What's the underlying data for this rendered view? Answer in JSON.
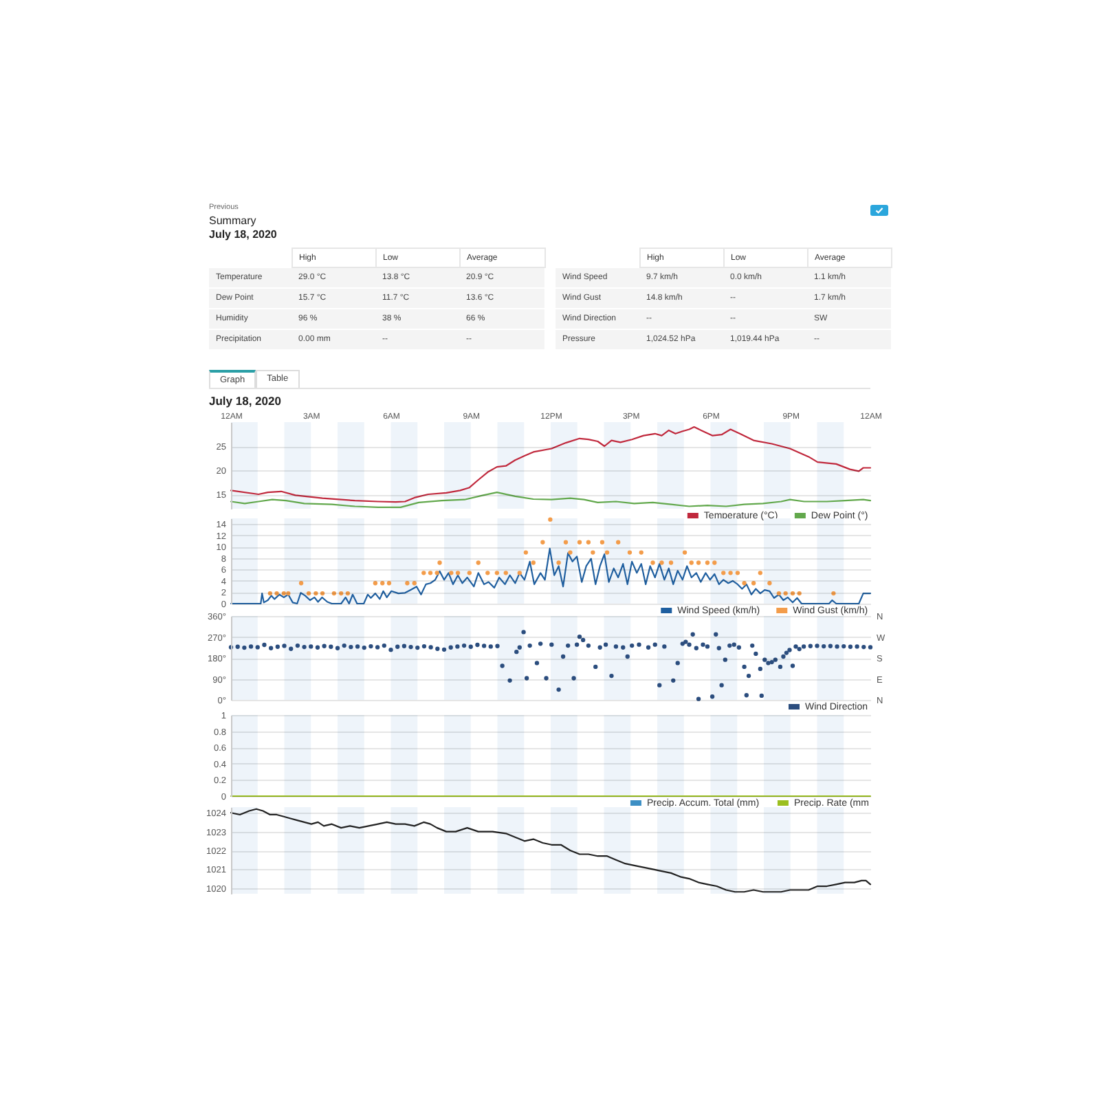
{
  "chart_data": [
    {
      "type": "other",
      "title": "Summary",
      "subtitle": "July 18, 2020",
      "annotations": [
        "Previous"
      ],
      "categories": [
        "High",
        "Low",
        "Average"
      ],
      "y_categories": [
        "Temperature",
        "Dew Point",
        "Humidity",
        "Precipitation"
      ],
      "cell_labels": [
        [
          "29.0 °C",
          "13.8 °C",
          "20.9 °C"
        ],
        [
          "15.7 °C",
          "11.7 °C",
          "13.6 °C"
        ],
        [
          "96 %",
          "38 %",
          "66 %"
        ],
        [
          "0.00 mm",
          "--",
          "--"
        ]
      ]
    },
    {
      "type": "other",
      "categories": [
        "High",
        "Low",
        "Average"
      ],
      "y_categories": [
        "Wind Speed",
        "Wind Gust",
        "Wind Direction",
        "Pressure"
      ],
      "cell_labels": [
        [
          "9.7 km/h",
          "0.0 km/h",
          "1.1 km/h"
        ],
        [
          "14.8 km/h",
          "--",
          "1.7 km/h"
        ],
        [
          "--",
          "--",
          "SW"
        ],
        [
          "1,024.52 hPa",
          "1,019.44 hPa",
          "--"
        ]
      ]
    },
    {
      "type": "line",
      "title": "July 18, 2020",
      "annotations": [
        "Graph",
        "Table"
      ],
      "xlim": [
        "2020-07-18T00:00",
        "2020-07-19T00:00"
      ],
      "xticks": [
        {
          "value": "2020-07-18T00:00",
          "label": "12AM"
        },
        {
          "value": "2020-07-18T03:00",
          "label": "3AM"
        },
        {
          "value": "2020-07-18T06:00",
          "label": "6AM"
        },
        {
          "value": "2020-07-18T09:00",
          "label": "9AM"
        },
        {
          "value": "2020-07-18T12:00",
          "label": "12PM"
        },
        {
          "value": "2020-07-18T15:00",
          "label": "3PM"
        },
        {
          "value": "2020-07-18T18:00",
          "label": "6PM"
        },
        {
          "value": "2020-07-18T21:00",
          "label": "9PM"
        },
        {
          "value": "2020-07-19T00:00",
          "label": "12AM"
        }
      ],
      "ylim": [
        12,
        30
      ],
      "yticks": [
        15,
        20,
        25
      ],
      "grid": "y",
      "legend": "bottom right",
      "bands": [
        {
          "axis": "x",
          "from": "2020-07-18T00:00",
          "to": "2020-07-18T01:00",
          "color": "#eef4fa"
        },
        {
          "axis": "x",
          "from": "2020-07-18T02:00",
          "to": "2020-07-18T03:00",
          "color": "#eef4fa"
        },
        {
          "axis": "x",
          "from": "2020-07-18T04:00",
          "to": "2020-07-18T05:00",
          "color": "#eef4fa"
        },
        {
          "axis": "x",
          "from": "2020-07-18T06:00",
          "to": "2020-07-18T07:00",
          "color": "#eef4fa"
        },
        {
          "axis": "x",
          "from": "2020-07-18T08:00",
          "to": "2020-07-18T09:00",
          "color": "#eef4fa"
        },
        {
          "axis": "x",
          "from": "2020-07-18T10:00",
          "to": "2020-07-18T11:00",
          "color": "#eef4fa"
        },
        {
          "axis": "x",
          "from": "2020-07-18T12:00",
          "to": "2020-07-18T13:00",
          "color": "#eef4fa"
        },
        {
          "axis": "x",
          "from": "2020-07-18T14:00",
          "to": "2020-07-18T15:00",
          "color": "#eef4fa"
        },
        {
          "axis": "x",
          "from": "2020-07-18T16:00",
          "to": "2020-07-18T17:00",
          "color": "#eef4fa"
        },
        {
          "axis": "x",
          "from": "2020-07-18T18:00",
          "to": "2020-07-18T19:00",
          "color": "#eef4fa"
        },
        {
          "axis": "x",
          "from": "2020-07-18T20:00",
          "to": "2020-07-18T21:00",
          "color": "#eef4fa"
        },
        {
          "axis": "x",
          "from": "2020-07-18T22:00",
          "to": "2020-07-18T23:00",
          "color": "#eef4fa"
        }
      ],
      "series": [
        {
          "name": "Temperature (°C)",
          "color": "#c0283c",
          "x": [
            "2020-07-18T00:00",
            "2020-07-18T01:02",
            "2020-07-18T01:23",
            "2020-07-18T01:53",
            "2020-07-18T02:25",
            "2020-07-18T03:26",
            "2020-07-18T04:08",
            "2020-07-18T04:39",
            "2020-07-18T05:31",
            "2020-07-18T06:11",
            "2020-07-18T06:32",
            "2020-07-18T06:53",
            "2020-07-18T07:24",
            "2020-07-18T08:05",
            "2020-07-18T08:36",
            "2020-07-18T08:57",
            "2020-07-18T09:17",
            "2020-07-18T09:38",
            "2020-07-18T09:59",
            "2020-07-18T10:19",
            "2020-07-18T10:40",
            "2020-07-18T11:01",
            "2020-07-18T11:21",
            "2020-07-18T12:02",
            "2020-07-18T12:34",
            "2020-07-18T13:05",
            "2020-07-18T13:25",
            "2020-07-18T13:46",
            "2020-07-18T14:01",
            "2020-07-18T14:17",
            "2020-07-18T14:37",
            "2020-07-18T15:03",
            "2020-07-18T15:29",
            "2020-07-18T15:55",
            "2020-07-18T16:10",
            "2020-07-18T16:26",
            "2020-07-18T16:41",
            "2020-07-18T16:57",
            "2020-07-18T17:12",
            "2020-07-18T17:23",
            "2020-07-18T17:43",
            "2020-07-18T18:04",
            "2020-07-18T18:25",
            "2020-07-18T18:45",
            "2020-07-18T19:06",
            "2020-07-18T19:37",
            "2020-07-18T20:18",
            "2020-07-18T20:59",
            "2020-07-18T21:41",
            "2020-07-18T22:01",
            "2020-07-18T22:43",
            "2020-07-18T23:14",
            "2020-07-18T23:34",
            "2020-07-18T23:44",
            "2020-07-19T00:00"
          ],
          "values": [
            15.8,
            15.0,
            15.4,
            15.6,
            14.8,
            14.2,
            13.9,
            13.7,
            13.5,
            13.4,
            13.5,
            14.3,
            15.0,
            15.3,
            15.8,
            16.4,
            18.0,
            19.6,
            20.7,
            20.9,
            22.1,
            23.0,
            23.8,
            24.5,
            25.7,
            26.6,
            26.4,
            26.0,
            25.0,
            26.2,
            25.8,
            26.4,
            27.2,
            27.6,
            27.2,
            28.3,
            27.6,
            28.1,
            28.5,
            29.0,
            28.1,
            27.2,
            27.4,
            28.5,
            27.6,
            26.2,
            25.5,
            24.5,
            22.8,
            21.7,
            21.3,
            20.2,
            19.8,
            20.5,
            20.5
          ]
        },
        {
          "name": "Dew Point (°)",
          "color": "#62a84c",
          "x": [
            "2020-07-18T00:00",
            "2020-07-18T00:31",
            "2020-07-18T01:02",
            "2020-07-18T01:33",
            "2020-07-18T02:04",
            "2020-07-18T02:45",
            "2020-07-18T03:47",
            "2020-07-18T04:39",
            "2020-07-18T05:31",
            "2020-07-18T06:22",
            "2020-07-18T07:03",
            "2020-07-18T07:55",
            "2020-07-18T08:46",
            "2020-07-18T09:28",
            "2020-07-18T09:59",
            "2020-07-18T10:40",
            "2020-07-18T11:21",
            "2020-07-18T12:02",
            "2020-07-18T12:44",
            "2020-07-18T13:15",
            "2020-07-18T13:46",
            "2020-07-18T14:27",
            "2020-07-18T15:08",
            "2020-07-18T15:50",
            "2020-07-18T16:31",
            "2020-07-18T17:12",
            "2020-07-18T17:53",
            "2020-07-18T18:35",
            "2020-07-18T19:16",
            "2020-07-18T19:58",
            "2020-07-18T20:39",
            "2020-07-18T20:59",
            "2020-07-18T21:31",
            "2020-07-18T22:22",
            "2020-07-18T23:03",
            "2020-07-18T23:44",
            "2020-07-19T00:00"
          ],
          "values": [
            13.5,
            13.1,
            13.5,
            13.9,
            13.7,
            13.1,
            12.9,
            12.5,
            12.3,
            12.3,
            13.3,
            13.7,
            13.9,
            14.8,
            15.4,
            14.6,
            14.0,
            13.9,
            14.2,
            13.9,
            13.3,
            13.5,
            13.1,
            13.3,
            12.9,
            12.5,
            12.7,
            12.5,
            12.9,
            13.1,
            13.5,
            13.9,
            13.5,
            13.5,
            13.7,
            13.9,
            13.7
          ]
        }
      ]
    },
    {
      "type": "line",
      "xlim": [
        "2020-07-18T00:00",
        "2020-07-19T00:00"
      ],
      "tick_labels": "y",
      "ylim": [
        0,
        15
      ],
      "yticks": [
        0,
        2,
        4,
        6,
        8,
        10,
        12,
        14
      ],
      "grid": "y",
      "legend": "bottom right",
      "bands": [
        {
          "axis": "x",
          "from": "2020-07-18T00:00",
          "to": "2020-07-18T01:00",
          "color": "#eef4fa"
        },
        {
          "axis": "x",
          "from": "2020-07-18T02:00",
          "to": "2020-07-18T03:00",
          "color": "#eef4fa"
        },
        {
          "axis": "x",
          "from": "2020-07-18T04:00",
          "to": "2020-07-18T05:00",
          "color": "#eef4fa"
        },
        {
          "axis": "x",
          "from": "2020-07-18T06:00",
          "to": "2020-07-18T07:00",
          "color": "#eef4fa"
        },
        {
          "axis": "x",
          "from": "2020-07-18T08:00",
          "to": "2020-07-18T09:00",
          "color": "#eef4fa"
        },
        {
          "axis": "x",
          "from": "2020-07-18T10:00",
          "to": "2020-07-18T11:00",
          "color": "#eef4fa"
        },
        {
          "axis": "x",
          "from": "2020-07-18T12:00",
          "to": "2020-07-18T13:00",
          "color": "#eef4fa"
        },
        {
          "axis": "x",
          "from": "2020-07-18T14:00",
          "to": "2020-07-18T15:00",
          "color": "#eef4fa"
        },
        {
          "axis": "x",
          "from": "2020-07-18T16:00",
          "to": "2020-07-18T17:00",
          "color": "#eef4fa"
        },
        {
          "axis": "x",
          "from": "2020-07-18T18:00",
          "to": "2020-07-18T19:00",
          "color": "#eef4fa"
        },
        {
          "axis": "x",
          "from": "2020-07-18T20:00",
          "to": "2020-07-18T21:00",
          "color": "#eef4fa"
        },
        {
          "axis": "x",
          "from": "2020-07-18T22:00",
          "to": "2020-07-18T23:00",
          "color": "#eef4fa"
        }
      ],
      "series": [
        {
          "name": "Wind Speed (km/h)",
          "color": "#1f5fa0",
          "x": [
            "2020-07-18T00:00",
            "2020-07-18T01:07",
            "2020-07-18T01:10",
            "2020-07-18T01:14",
            "2020-07-18T01:23",
            "2020-07-18T01:31",
            "2020-07-18T01:38",
            "2020-07-18T01:49",
            "2020-07-18T01:59",
            "2020-07-18T02:09",
            "2020-07-18T02:19",
            "2020-07-18T02:29",
            "2020-07-18T02:37",
            "2020-07-18T02:47",
            "2020-07-18T02:58",
            "2020-07-18T03:08",
            "2020-07-18T03:16",
            "2020-07-18T03:25",
            "2020-07-18T03:37",
            "2020-07-18T03:47",
            "2020-07-18T04:08",
            "2020-07-18T04:18",
            "2020-07-18T04:26",
            "2020-07-18T04:34",
            "2020-07-18T04:44",
            "2020-07-18T04:59",
            "2020-07-18T05:08",
            "2020-07-18T05:15",
            "2020-07-18T05:25",
            "2020-07-18T05:35",
            "2020-07-18T05:43",
            "2020-07-18T05:51",
            "2020-07-18T06:01",
            "2020-07-18T06:17",
            "2020-07-18T06:32",
            "2020-07-18T06:44",
            "2020-07-18T06:58",
            "2020-07-18T07:08",
            "2020-07-18T07:19",
            "2020-07-18T07:29",
            "2020-07-18T07:40",
            "2020-07-18T07:50",
            "2020-07-18T08:00",
            "2020-07-18T08:10",
            "2020-07-18T08:20",
            "2020-07-18T08:31",
            "2020-07-18T08:41",
            "2020-07-18T08:52",
            "2020-07-18T09:07",
            "2020-07-18T09:17",
            "2020-07-18T09:30",
            "2020-07-18T09:40",
            "2020-07-18T09:53",
            "2020-07-18T10:04",
            "2020-07-18T10:17",
            "2020-07-18T10:28",
            "2020-07-18T10:40",
            "2020-07-18T10:50",
            "2020-07-18T11:01",
            "2020-07-18T11:13",
            "2020-07-18T11:23",
            "2020-07-18T11:37",
            "2020-07-18T11:47",
            "2020-07-18T11:58",
            "2020-07-18T12:08",
            "2020-07-18T12:18",
            "2020-07-18T12:28",
            "2020-07-18T12:39",
            "2020-07-18T12:49",
            "2020-07-18T12:59",
            "2020-07-18T13:10",
            "2020-07-18T13:20",
            "2020-07-18T13:31",
            "2020-07-18T13:41",
            "2020-07-18T13:51",
            "2020-07-18T14:01",
            "2020-07-18T14:11",
            "2020-07-18T14:22",
            "2020-07-18T14:32",
            "2020-07-18T14:43",
            "2020-07-18T14:53",
            "2020-07-18T15:03",
            "2020-07-18T15:14",
            "2020-07-18T15:24",
            "2020-07-18T15:34",
            "2020-07-18T15:44",
            "2020-07-18T15:55",
            "2020-07-18T16:05",
            "2020-07-18T16:16",
            "2020-07-18T16:26",
            "2020-07-18T16:36",
            "2020-07-18T16:46",
            "2020-07-18T16:57",
            "2020-07-18T17:07",
            "2020-07-18T17:17",
            "2020-07-18T17:28",
            "2020-07-18T17:38",
            "2020-07-18T17:49",
            "2020-07-18T17:59",
            "2020-07-18T18:09",
            "2020-07-18T18:19",
            "2020-07-18T18:29",
            "2020-07-18T18:40",
            "2020-07-18T18:50",
            "2020-07-18T19:01",
            "2020-07-18T19:11",
            "2020-07-18T19:21",
            "2020-07-18T19:32",
            "2020-07-18T19:42",
            "2020-07-18T19:52",
            "2020-07-18T20:02",
            "2020-07-18T20:13",
            "2020-07-18T20:23",
            "2020-07-18T20:34",
            "2020-07-18T20:44",
            "2020-07-18T20:54",
            "2020-07-18T21:05",
            "2020-07-18T21:15",
            "2020-07-18T21:25",
            "2020-07-18T22:27",
            "2020-07-18T22:34",
            "2020-07-18T22:43",
            "2020-07-18T23:34",
            "2020-07-18T23:44",
            "2020-07-19T00:00"
          ],
          "values": [
            0,
            0,
            1.8,
            0.2,
            0.6,
            1.4,
            0.8,
            1.6,
            1.1,
            1.6,
            0.2,
            0,
            1.9,
            1.4,
            0.6,
            1.1,
            0.3,
            1.1,
            0.3,
            0,
            0,
            1.1,
            0,
            1.6,
            0,
            0,
            1.6,
            1.0,
            1.8,
            0.8,
            2.2,
            1.1,
            2.2,
            1.8,
            1.9,
            2.4,
            3.0,
            1.6,
            3.4,
            3.6,
            4.2,
            5.7,
            4.2,
            5.4,
            3.4,
            5.0,
            3.6,
            4.6,
            3.0,
            5.4,
            3.4,
            3.8,
            2.8,
            4.6,
            3.4,
            5.0,
            3.6,
            5.4,
            4.2,
            7.4,
            3.4,
            5.4,
            4.2,
            9.7,
            5.0,
            6.6,
            3.0,
            8.9,
            7.4,
            8.3,
            3.8,
            6.6,
            7.9,
            3.4,
            6.6,
            8.7,
            3.8,
            6.2,
            4.6,
            7.0,
            3.4,
            7.4,
            5.4,
            7.0,
            3.4,
            6.6,
            4.6,
            7.0,
            4.2,
            6.2,
            3.4,
            5.8,
            4.2,
            6.6,
            4.6,
            5.4,
            3.8,
            5.4,
            4.2,
            5.2,
            3.4,
            4.2,
            3.6,
            4.0,
            3.4,
            2.6,
            3.4,
            1.6,
            2.6,
            1.8,
            2.4,
            2.2,
            1.0,
            1.6,
            0.6,
            1.1,
            0.2,
            1.0,
            0,
            0,
            0.6,
            0,
            0,
            1.8,
            1.8
          ]
        },
        {
          "name": "Wind Gust (km/h)",
          "type": "scatter",
          "marker": "circle",
          "color": "#f39c4a",
          "x": [
            "2020-07-18T01:28",
            "2020-07-18T01:43",
            "2020-07-18T01:59",
            "2020-07-18T02:09",
            "2020-07-18T02:38",
            "2020-07-18T02:55",
            "2020-07-18T03:11",
            "2020-07-18T03:26",
            "2020-07-18T03:52",
            "2020-07-18T04:08",
            "2020-07-18T04:23",
            "2020-07-18T05:25",
            "2020-07-18T05:41",
            "2020-07-18T05:56",
            "2020-07-18T06:37",
            "2020-07-18T06:53",
            "2020-07-18T07:14",
            "2020-07-18T07:29",
            "2020-07-18T07:44",
            "2020-07-18T07:50",
            "2020-07-18T08:16",
            "2020-07-18T08:31",
            "2020-07-18T08:57",
            "2020-07-18T09:17",
            "2020-07-18T09:38",
            "2020-07-18T09:59",
            "2020-07-18T10:19",
            "2020-07-18T10:50",
            "2020-07-18T11:04",
            "2020-07-18T11:21",
            "2020-07-18T11:42",
            "2020-07-18T11:59",
            "2020-07-18T12:18",
            "2020-07-18T12:34",
            "2020-07-18T12:44",
            "2020-07-18T13:05",
            "2020-07-18T13:25",
            "2020-07-18T13:35",
            "2020-07-18T13:56",
            "2020-07-18T14:07",
            "2020-07-18T14:32",
            "2020-07-18T14:58",
            "2020-07-18T15:24",
            "2020-07-18T15:50",
            "2020-07-18T16:10",
            "2020-07-18T16:31",
            "2020-07-18T17:02",
            "2020-07-18T17:17",
            "2020-07-18T17:33",
            "2020-07-18T17:53",
            "2020-07-18T18:09",
            "2020-07-18T18:29",
            "2020-07-18T18:45",
            "2020-07-18T19:01",
            "2020-07-18T19:16",
            "2020-07-18T19:37",
            "2020-07-18T19:52",
            "2020-07-18T20:13",
            "2020-07-18T20:34",
            "2020-07-18T20:49",
            "2020-07-18T21:05",
            "2020-07-18T21:20",
            "2020-07-18T22:37"
          ],
          "values": [
            1.8,
            1.8,
            1.8,
            1.8,
            3.6,
            1.8,
            1.8,
            1.8,
            1.8,
            1.8,
            1.8,
            3.6,
            3.6,
            3.6,
            3.6,
            3.6,
            5.4,
            5.4,
            5.4,
            7.2,
            5.4,
            5.4,
            5.4,
            7.2,
            5.4,
            5.4,
            5.4,
            5.4,
            9.0,
            7.2,
            10.8,
            14.8,
            7.2,
            10.8,
            9.0,
            10.8,
            10.8,
            9.0,
            10.8,
            9.0,
            10.8,
            9.0,
            9.0,
            7.2,
            7.2,
            7.2,
            9.0,
            7.2,
            7.2,
            7.2,
            7.2,
            5.4,
            5.4,
            5.4,
            3.6,
            3.6,
            5.4,
            3.6,
            1.8,
            1.8,
            1.8,
            1.8,
            1.8
          ]
        }
      ]
    },
    {
      "type": "scatter",
      "marker": "circle",
      "xlim": [
        "2020-07-18T00:00",
        "2020-07-19T00:00"
      ],
      "tick_labels": "y",
      "ylim": [
        0,
        360
      ],
      "yticks": [
        {
          "value": 0,
          "label": "0°"
        },
        {
          "value": 90,
          "label": "90°"
        },
        {
          "value": 180,
          "label": "180°"
        },
        {
          "value": 270,
          "label": "270°"
        },
        {
          "value": 360,
          "label": "360°"
        }
      ],
      "y2_categories": [
        "N",
        "W",
        "S",
        "E",
        "N"
      ],
      "grid": "y",
      "legend": "bottom right",
      "bands": [
        {
          "axis": "x",
          "from": "2020-07-18T00:00",
          "to": "2020-07-18T01:00",
          "color": "#eef4fa"
        },
        {
          "axis": "x",
          "from": "2020-07-18T02:00",
          "to": "2020-07-18T03:00",
          "color": "#eef4fa"
        },
        {
          "axis": "x",
          "from": "2020-07-18T04:00",
          "to": "2020-07-18T05:00",
          "color": "#eef4fa"
        },
        {
          "axis": "x",
          "from": "2020-07-18T06:00",
          "to": "2020-07-18T07:00",
          "color": "#eef4fa"
        },
        {
          "axis": "x",
          "from": "2020-07-18T08:00",
          "to": "2020-07-18T09:00",
          "color": "#eef4fa"
        },
        {
          "axis": "x",
          "from": "2020-07-18T10:00",
          "to": "2020-07-18T11:00",
          "color": "#eef4fa"
        },
        {
          "axis": "x",
          "from": "2020-07-18T12:00",
          "to": "2020-07-18T13:00",
          "color": "#eef4fa"
        },
        {
          "axis": "x",
          "from": "2020-07-18T14:00",
          "to": "2020-07-18T15:00",
          "color": "#eef4fa"
        },
        {
          "axis": "x",
          "from": "2020-07-18T16:00",
          "to": "2020-07-18T17:00",
          "color": "#eef4fa"
        },
        {
          "axis": "x",
          "from": "2020-07-18T18:00",
          "to": "2020-07-18T19:00",
          "color": "#eef4fa"
        },
        {
          "axis": "x",
          "from": "2020-07-18T20:00",
          "to": "2020-07-18T21:00",
          "color": "#eef4fa"
        },
        {
          "axis": "x",
          "from": "2020-07-18T22:00",
          "to": "2020-07-18T23:00",
          "color": "#eef4fa"
        }
      ],
      "series": [
        {
          "name": "Wind Direction",
          "color": "#2b4d7e",
          "x": [
            "2020-07-18T00:00",
            "2020-07-18T00:15",
            "2020-07-18T00:30",
            "2020-07-18T00:45",
            "2020-07-18T01:00",
            "2020-07-18T01:15",
            "2020-07-18T01:30",
            "2020-07-18T01:45",
            "2020-07-18T02:00",
            "2020-07-18T02:15",
            "2020-07-18T02:30",
            "2020-07-18T02:45",
            "2020-07-18T03:00",
            "2020-07-18T03:15",
            "2020-07-18T03:30",
            "2020-07-18T03:45",
            "2020-07-18T04:00",
            "2020-07-18T04:15",
            "2020-07-18T04:30",
            "2020-07-18T04:45",
            "2020-07-18T05:00",
            "2020-07-18T05:15",
            "2020-07-18T05:30",
            "2020-07-18T05:45",
            "2020-07-18T06:00",
            "2020-07-18T06:15",
            "2020-07-18T06:30",
            "2020-07-18T06:45",
            "2020-07-18T07:00",
            "2020-07-18T07:15",
            "2020-07-18T07:30",
            "2020-07-18T07:45",
            "2020-07-18T08:00",
            "2020-07-18T08:15",
            "2020-07-18T08:30",
            "2020-07-18T08:45",
            "2020-07-18T09:00",
            "2020-07-18T09:15",
            "2020-07-18T09:30",
            "2020-07-18T09:45",
            "2020-07-18T10:00",
            "2020-07-18T10:11",
            "2020-07-18T10:28",
            "2020-07-18T10:43",
            "2020-07-18T10:50",
            "2020-07-18T10:59",
            "2020-07-18T11:06",
            "2020-07-18T11:13",
            "2020-07-18T11:29",
            "2020-07-18T11:37",
            "2020-07-18T11:50",
            "2020-07-18T12:02",
            "2020-07-18T12:18",
            "2020-07-18T12:28",
            "2020-07-18T12:39",
            "2020-07-18T12:52",
            "2020-07-18T12:59",
            "2020-07-18T13:05",
            "2020-07-18T13:13",
            "2020-07-18T13:25",
            "2020-07-18T13:41",
            "2020-07-18T13:51",
            "2020-07-18T14:04",
            "2020-07-18T14:17",
            "2020-07-18T14:27",
            "2020-07-18T14:43",
            "2020-07-18T14:53",
            "2020-07-18T15:03",
            "2020-07-18T15:19",
            "2020-07-18T15:40",
            "2020-07-18T15:55",
            "2020-07-18T16:05",
            "2020-07-18T16:16",
            "2020-07-18T16:36",
            "2020-07-18T16:46",
            "2020-07-18T16:57",
            "2020-07-18T17:04",
            "2020-07-18T17:12",
            "2020-07-18T17:20",
            "2020-07-18T17:28",
            "2020-07-18T17:33",
            "2020-07-18T17:43",
            "2020-07-18T17:53",
            "2020-07-18T18:04",
            "2020-07-18T18:12",
            "2020-07-18T18:19",
            "2020-07-18T18:25",
            "2020-07-18T18:33",
            "2020-07-18T18:43",
            "2020-07-18T18:53",
            "2020-07-18T19:04",
            "2020-07-18T19:16",
            "2020-07-18T19:21",
            "2020-07-18T19:26",
            "2020-07-18T19:34",
            "2020-07-18T19:42",
            "2020-07-18T19:52",
            "2020-07-18T19:55",
            "2020-07-18T20:02",
            "2020-07-18T20:10",
            "2020-07-18T20:18",
            "2020-07-18T20:26",
            "2020-07-18T20:37",
            "2020-07-18T20:44",
            "2020-07-18T20:51",
            "2020-07-18T20:58",
            "2020-07-18T21:05",
            "2020-07-18T21:12",
            "2020-07-18T21:20",
            "2020-07-18T21:30",
            "2020-07-18T21:45",
            "2020-07-18T22:00",
            "2020-07-18T22:15",
            "2020-07-18T22:30",
            "2020-07-18T22:45",
            "2020-07-18T23:00",
            "2020-07-18T23:15",
            "2020-07-18T23:30",
            "2020-07-18T23:45",
            "2020-07-19T00:00"
          ],
          "values": [
            226,
            228,
            224,
            229,
            226,
            236,
            222,
            228,
            232,
            219,
            233,
            227,
            229,
            225,
            231,
            228,
            222,
            233,
            227,
            229,
            224,
            230,
            226,
            233,
            215,
            228,
            231,
            227,
            224,
            230,
            226,
            219,
            216,
            225,
            229,
            233,
            228,
            236,
            232,
            229,
            231,
            146,
            83,
            206,
            225,
            291,
            93,
            233,
            158,
            241,
            93,
            237,
            44,
            186,
            233,
            93,
            237,
            271,
            257,
            233,
            142,
            225,
            237,
            103,
            229,
            225,
            186,
            233,
            237,
            225,
            237,
            63,
            229,
            83,
            158,
            241,
            249,
            237,
            281,
            222,
            4,
            237,
            229,
            14,
            281,
            222,
            63,
            172,
            233,
            237,
            225,
            142,
            20,
            103,
            233,
            198,
            133,
            18,
            172,
            158,
            162,
            172,
            142,
            186,
            202,
            214,
            146,
            229,
            218,
            229,
            231,
            232,
            230,
            231,
            229,
            230,
            228,
            229,
            227,
            226
          ]
        }
      ]
    },
    {
      "type": "line",
      "xlim": [
        "2020-07-18T00:00",
        "2020-07-19T00:00"
      ],
      "tick_labels": "y",
      "x": [
        "2020-07-18T00:00",
        "2020-07-19T00:00"
      ],
      "ylim": [
        0,
        1
      ],
      "yticks": [
        0,
        0.2,
        0.4,
        0.6,
        0.8,
        1
      ],
      "grid": "y",
      "legend": "bottom right",
      "bands": [
        {
          "axis": "x",
          "from": "2020-07-18T00:00",
          "to": "2020-07-18T01:00",
          "color": "#eef4fa"
        },
        {
          "axis": "x",
          "from": "2020-07-18T02:00",
          "to": "2020-07-18T03:00",
          "color": "#eef4fa"
        },
        {
          "axis": "x",
          "from": "2020-07-18T04:00",
          "to": "2020-07-18T05:00",
          "color": "#eef4fa"
        },
        {
          "axis": "x",
          "from": "2020-07-18T06:00",
          "to": "2020-07-18T07:00",
          "color": "#eef4fa"
        },
        {
          "axis": "x",
          "from": "2020-07-18T08:00",
          "to": "2020-07-18T09:00",
          "color": "#eef4fa"
        },
        {
          "axis": "x",
          "from": "2020-07-18T10:00",
          "to": "2020-07-18T11:00",
          "color": "#eef4fa"
        },
        {
          "axis": "x",
          "from": "2020-07-18T12:00",
          "to": "2020-07-18T13:00",
          "color": "#eef4fa"
        },
        {
          "axis": "x",
          "from": "2020-07-18T14:00",
          "to": "2020-07-18T15:00",
          "color": "#eef4fa"
        },
        {
          "axis": "x",
          "from": "2020-07-18T16:00",
          "to": "2020-07-18T17:00",
          "color": "#eef4fa"
        },
        {
          "axis": "x",
          "from": "2020-07-18T18:00",
          "to": "2020-07-18T19:00",
          "color": "#eef4fa"
        },
        {
          "axis": "x",
          "from": "2020-07-18T20:00",
          "to": "2020-07-18T21:00",
          "color": "#eef4fa"
        },
        {
          "axis": "x",
          "from": "2020-07-18T22:00",
          "to": "2020-07-18T23:00",
          "color": "#eef4fa"
        }
      ],
      "series": [
        {
          "name": "Precip. Accum. Total (mm)",
          "color": "#3d8fc4",
          "values": [
            null,
            null
          ]
        },
        {
          "name": "Precip. Rate (mm",
          "color": "#9bbf1f",
          "values": [
            0,
            0
          ]
        }
      ]
    },
    {
      "type": "line",
      "xlim": [
        "2020-07-18T00:00",
        "2020-07-19T00:00"
      ],
      "tick_labels": "y",
      "ylim": [
        1019.7,
        1024.3
      ],
      "yticks": [
        1020,
        1021,
        1022,
        1023,
        1024
      ],
      "grid": "y",
      "bands": [
        {
          "axis": "x",
          "from": "2020-07-18T00:00",
          "to": "2020-07-18T01:00",
          "color": "#eef4fa"
        },
        {
          "axis": "x",
          "from": "2020-07-18T02:00",
          "to": "2020-07-18T03:00",
          "color": "#eef4fa"
        },
        {
          "axis": "x",
          "from": "2020-07-18T04:00",
          "to": "2020-07-18T05:00",
          "color": "#eef4fa"
        },
        {
          "axis": "x",
          "from": "2020-07-18T06:00",
          "to": "2020-07-18T07:00",
          "color": "#eef4fa"
        },
        {
          "axis": "x",
          "from": "2020-07-18T08:00",
          "to": "2020-07-18T09:00",
          "color": "#eef4fa"
        },
        {
          "axis": "x",
          "from": "2020-07-18T10:00",
          "to": "2020-07-18T11:00",
          "color": "#eef4fa"
        },
        {
          "axis": "x",
          "from": "2020-07-18T12:00",
          "to": "2020-07-18T13:00",
          "color": "#eef4fa"
        },
        {
          "axis": "x",
          "from": "2020-07-18T14:00",
          "to": "2020-07-18T15:00",
          "color": "#eef4fa"
        },
        {
          "axis": "x",
          "from": "2020-07-18T16:00",
          "to": "2020-07-18T17:00",
          "color": "#eef4fa"
        },
        {
          "axis": "x",
          "from": "2020-07-18T18:00",
          "to": "2020-07-18T19:00",
          "color": "#eef4fa"
        },
        {
          "axis": "x",
          "from": "2020-07-18T20:00",
          "to": "2020-07-18T21:00",
          "color": "#eef4fa"
        },
        {
          "axis": "x",
          "from": "2020-07-18T22:00",
          "to": "2020-07-18T23:00",
          "color": "#eef4fa"
        }
      ],
      "series": [
        {
          "color": "#222222",
          "x": [
            "2020-07-18T00:00",
            "2020-07-18T00:20",
            "2020-07-18T00:41",
            "2020-07-18T00:57",
            "2020-07-18T01:12",
            "2020-07-18T01:28",
            "2020-07-18T01:43",
            "2020-07-18T01:59",
            "2020-07-18T02:14",
            "2020-07-18T02:29",
            "2020-07-18T02:45",
            "2020-07-18T03:01",
            "2020-07-18T03:16",
            "2020-07-18T03:29",
            "2020-07-18T03:47",
            "2020-07-18T04:08",
            "2020-07-18T04:28",
            "2020-07-18T04:49",
            "2020-07-18T05:10",
            "2020-07-18T05:31",
            "2020-07-18T05:51",
            "2020-07-18T06:11",
            "2020-07-18T06:32",
            "2020-07-18T06:53",
            "2020-07-18T07:14",
            "2020-07-18T07:29",
            "2020-07-18T07:44",
            "2020-07-18T08:05",
            "2020-07-18T08:26",
            "2020-07-18T08:52",
            "2020-07-18T09:17",
            "2020-07-18T09:49",
            "2020-07-18T10:19",
            "2020-07-18T10:40",
            "2020-07-18T11:01",
            "2020-07-18T11:21",
            "2020-07-18T11:42",
            "2020-07-18T12:02",
            "2020-07-18T12:23",
            "2020-07-18T12:44",
            "2020-07-18T13:05",
            "2020-07-18T13:25",
            "2020-07-18T13:46",
            "2020-07-18T14:07",
            "2020-07-18T14:27",
            "2020-07-18T14:48",
            "2020-07-18T15:08",
            "2020-07-18T15:29",
            "2020-07-18T15:50",
            "2020-07-18T16:10",
            "2020-07-18T16:31",
            "2020-07-18T16:52",
            "2020-07-18T17:12",
            "2020-07-18T17:33",
            "2020-07-18T17:53",
            "2020-07-18T18:14",
            "2020-07-18T18:35",
            "2020-07-18T18:55",
            "2020-07-18T19:16",
            "2020-07-18T19:37",
            "2020-07-18T19:58",
            "2020-07-18T20:18",
            "2020-07-18T20:39",
            "2020-07-18T20:59",
            "2020-07-18T21:20",
            "2020-07-18T21:41",
            "2020-07-18T22:01",
            "2020-07-18T22:22",
            "2020-07-18T22:43",
            "2020-07-18T23:03",
            "2020-07-18T23:24",
            "2020-07-18T23:40",
            "2020-07-18T23:50",
            "2020-07-19T00:00"
          ],
          "values": [
            1024.0,
            1023.9,
            1024.1,
            1024.2,
            1024.1,
            1023.9,
            1023.9,
            1023.8,
            1023.7,
            1023.6,
            1023.5,
            1023.4,
            1023.5,
            1023.3,
            1023.4,
            1023.2,
            1023.3,
            1023.2,
            1023.3,
            1023.4,
            1023.5,
            1023.4,
            1023.4,
            1023.3,
            1023.5,
            1023.4,
            1023.2,
            1023.0,
            1023.0,
            1023.2,
            1023.0,
            1023.0,
            1022.9,
            1022.7,
            1022.5,
            1022.6,
            1022.4,
            1022.3,
            1022.3,
            1022.0,
            1021.8,
            1021.8,
            1021.7,
            1021.7,
            1021.5,
            1021.3,
            1021.2,
            1021.1,
            1021.0,
            1020.9,
            1020.8,
            1020.6,
            1020.5,
            1020.3,
            1020.2,
            1020.1,
            1019.9,
            1019.8,
            1019.8,
            1019.9,
            1019.8,
            1019.8,
            1019.8,
            1019.9,
            1019.9,
            1019.9,
            1020.1,
            1020.1,
            1020.2,
            1020.3,
            1020.3,
            1020.4,
            1020.4,
            1020.2
          ]
        }
      ]
    }
  ]
}
